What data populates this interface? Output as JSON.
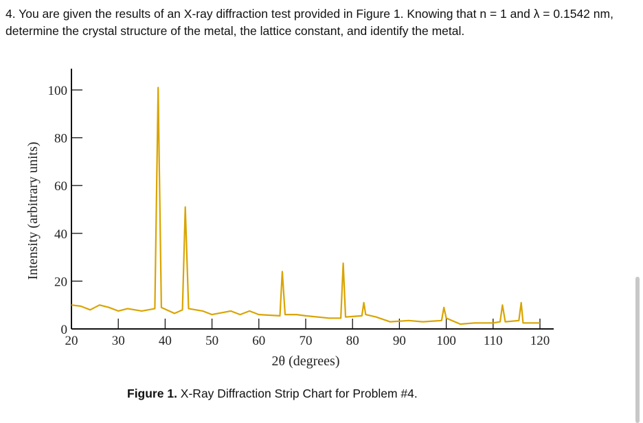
{
  "problem": {
    "text": "4.  You are given the results of an X-ray diffraction test provided in Figure 1.  Knowing that n = 1 and λ = 0.1542 nm, determine the crystal structure of the metal, the lattice constant, and identify the metal."
  },
  "caption": {
    "label": "Figure 1.",
    "text": " X-Ray Diffraction Strip Chart for Problem #4."
  },
  "chart_data": {
    "type": "line",
    "title": "",
    "xlabel": "2θ (degrees)",
    "ylabel": "Intensity (arbitrary units)",
    "xlim": [
      20,
      120
    ],
    "ylim": [
      0,
      100
    ],
    "xticks": [
      "20",
      "30",
      "40",
      "50",
      "60",
      "70",
      "80",
      "90",
      "100",
      "110",
      "120"
    ],
    "yticks": [
      "0",
      "20",
      "40",
      "60",
      "80",
      "100"
    ],
    "grid": false,
    "color": "#d9a400",
    "series": [
      {
        "points": [
          [
            20,
            10
          ],
          [
            22,
            9.5
          ],
          [
            24,
            8
          ],
          [
            26,
            10
          ],
          [
            28,
            9
          ],
          [
            30,
            7.5
          ],
          [
            32,
            8.5
          ],
          [
            35,
            7.5
          ],
          [
            37.8,
            8.5
          ],
          [
            38.5,
            101
          ],
          [
            39.2,
            9
          ],
          [
            42,
            6.5
          ],
          [
            43.7,
            8
          ],
          [
            44.3,
            51
          ],
          [
            45,
            8.5
          ],
          [
            48,
            7.5
          ],
          [
            50,
            6
          ],
          [
            54,
            7.5
          ],
          [
            56,
            6
          ],
          [
            58,
            7.5
          ],
          [
            60,
            6
          ],
          [
            64.5,
            5.5
          ],
          [
            65,
            24
          ],
          [
            65.6,
            6
          ],
          [
            68,
            6
          ],
          [
            70,
            5.5
          ],
          [
            75,
            4.5
          ],
          [
            77.5,
            4.5
          ],
          [
            78,
            27.5
          ],
          [
            78.5,
            5
          ],
          [
            82,
            5.5
          ],
          [
            82.4,
            11
          ],
          [
            82.8,
            6
          ],
          [
            85,
            5
          ],
          [
            88,
            3
          ],
          [
            92,
            3.5
          ],
          [
            95,
            3
          ],
          [
            99,
            3.5
          ],
          [
            99.5,
            9
          ],
          [
            100,
            4.5
          ],
          [
            103,
            2
          ],
          [
            106,
            2.5
          ],
          [
            110,
            2.5
          ],
          [
            111.5,
            3
          ],
          [
            112,
            10
          ],
          [
            112.6,
            3
          ],
          [
            115.5,
            3.5
          ],
          [
            116,
            11
          ],
          [
            116.4,
            2.5
          ],
          [
            118,
            2.5
          ],
          [
            120,
            2.5
          ]
        ]
      }
    ]
  }
}
